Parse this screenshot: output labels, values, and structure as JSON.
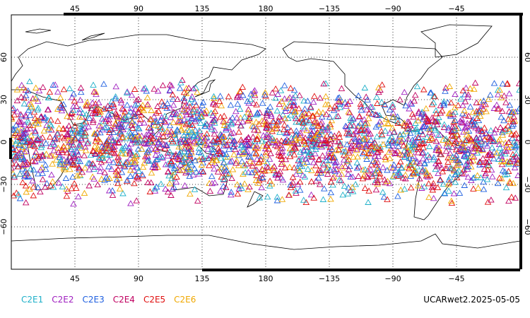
{
  "chart_data": {
    "type": "scatter",
    "projection": "equirectangular",
    "center_longitude": 180,
    "x_range": [
      0,
      360
    ],
    "y_range": [
      -90,
      90
    ],
    "grid": true,
    "top_ticks": [
      {
        "lon": 45,
        "label": "45"
      },
      {
        "lon": 90,
        "label": "90"
      },
      {
        "lon": 135,
        "label": "135"
      },
      {
        "lon": 180,
        "label": "180"
      },
      {
        "lon": 225,
        "label": "−135"
      },
      {
        "lon": 270,
        "label": "−90"
      },
      {
        "lon": 315,
        "label": "−45"
      }
    ],
    "bottom_ticks": [
      {
        "lon": 45,
        "label": "45"
      },
      {
        "lon": 90,
        "label": "90"
      },
      {
        "lon": 135,
        "label": "135"
      },
      {
        "lon": 180,
        "label": "180"
      },
      {
        "lon": 225,
        "label": "−135"
      },
      {
        "lon": 270,
        "label": "−90"
      },
      {
        "lon": 315,
        "label": "−45"
      }
    ],
    "lat_ticks": [
      {
        "lat": 60,
        "label": "60"
      },
      {
        "lat": 30,
        "label": "30"
      },
      {
        "lat": 0,
        "label": "0"
      },
      {
        "lat": -30,
        "label": "−30"
      },
      {
        "lat": -60,
        "label": "−60"
      }
    ],
    "marker": "open-triangle",
    "observation_band_lat": [
      -45,
      45
    ],
    "series": [
      {
        "name": "C2E1",
        "color": "#1fb0c9"
      },
      {
        "name": "C2E2",
        "color": "#a020c0"
      },
      {
        "name": "C2E3",
        "color": "#2060e0"
      },
      {
        "name": "C2E4",
        "color": "#c00060"
      },
      {
        "name": "C2E5",
        "color": "#e01010"
      },
      {
        "name": "C2E6",
        "color": "#f0a800"
      }
    ]
  },
  "legend": {
    "items": [
      {
        "label": "C2E1",
        "color": "#1fb0c9"
      },
      {
        "label": "C2E2",
        "color": "#a020c0"
      },
      {
        "label": "C2E3",
        "color": "#2060e0"
      },
      {
        "label": "C2E4",
        "color": "#c00060"
      },
      {
        "label": "C2E5",
        "color": "#e01010"
      },
      {
        "label": "C2E6",
        "color": "#f0a800"
      }
    ]
  },
  "caption": "UCARwet2.2025-05-05"
}
